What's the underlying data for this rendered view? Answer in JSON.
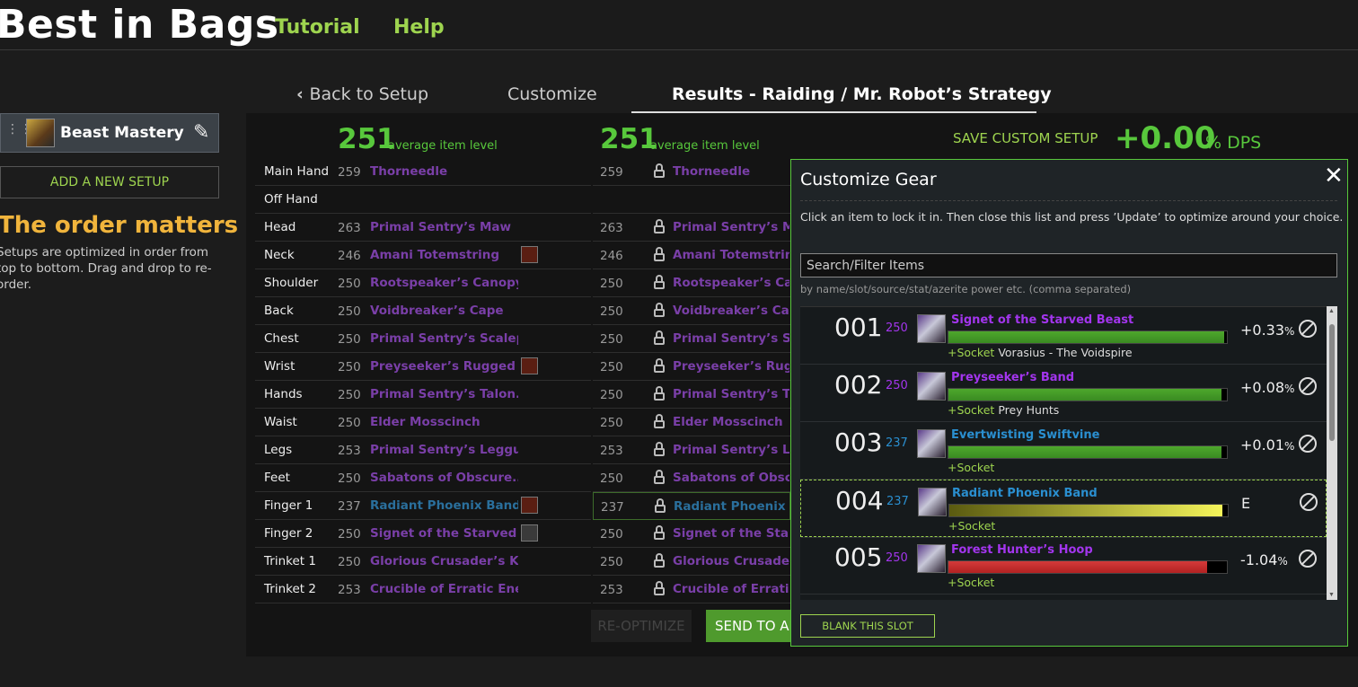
{
  "header": {
    "logo": "Best in Bags",
    "nav": [
      "Tutorial",
      "Help"
    ]
  },
  "sidebar": {
    "setup_name": "Beast Mastery",
    "add_setup": "ADD A NEW SETUP",
    "order_heading": "The order matters",
    "order_text": "Setups are optimized in order from top to bottom. Drag and drop to re-order."
  },
  "tabs": [
    "Back to Setup",
    "Customize",
    "Results - Raiding / Mr. Robot’s Strategy"
  ],
  "summary": {
    "left_ilvl": "251",
    "right_ilvl": "251",
    "ilvl_label": "average item level",
    "save_custom": "SAVE CUSTOM SETUP",
    "dps_value": "+0.00",
    "dps_unit": "% DPS"
  },
  "gear": [
    {
      "slot": "Main Hand",
      "ilvl": "259",
      "item": "Thorneedle",
      "right_item": "Thorneedle",
      "blue": false,
      "gem": ""
    },
    {
      "slot": "Off Hand",
      "ilvl": "",
      "item": "",
      "right_item": "",
      "blue": false,
      "gem": ""
    },
    {
      "slot": "Head",
      "ilvl": "263",
      "item": "Primal Sentry’s Maw",
      "right_item": "Primal Sentry’s Maw",
      "blue": false,
      "gem": ""
    },
    {
      "slot": "Neck",
      "ilvl": "246",
      "item": "Amani Totemstring",
      "right_item": "Amani Totemstring",
      "blue": false,
      "gem": "red"
    },
    {
      "slot": "Shoulder",
      "ilvl": "250",
      "item": "Rootspeaker’s Canopy",
      "right_item": "Rootspeaker’s Canc",
      "blue": false,
      "gem": ""
    },
    {
      "slot": "Back",
      "ilvl": "250",
      "item": "Voidbreaker’s Cape",
      "right_item": "Voidbreaker’s Cape",
      "blue": false,
      "gem": ""
    },
    {
      "slot": "Chest",
      "ilvl": "250",
      "item": "Primal Sentry’s Scalep...",
      "right_item": "Primal Sentry’s Scal",
      "blue": false,
      "gem": ""
    },
    {
      "slot": "Wrist",
      "ilvl": "250",
      "item": "Preyseeker’s Rugged ...",
      "right_item": "Preyseeker’s Rugge",
      "blue": false,
      "gem": "red"
    },
    {
      "slot": "Hands",
      "ilvl": "250",
      "item": "Primal Sentry’s Talon...",
      "right_item": "Primal Sentry’s Talo",
      "blue": false,
      "gem": ""
    },
    {
      "slot": "Waist",
      "ilvl": "250",
      "item": "Elder Mosscinch",
      "right_item": "Elder Mosscinch",
      "blue": false,
      "gem": ""
    },
    {
      "slot": "Legs",
      "ilvl": "253",
      "item": "Primal Sentry’s Leggu...",
      "right_item": "Primal Sentry’s Legg",
      "blue": false,
      "gem": ""
    },
    {
      "slot": "Feet",
      "ilvl": "250",
      "item": "Sabatons of Obscure...",
      "right_item": "Sabatons of Obscur",
      "blue": false,
      "gem": ""
    },
    {
      "slot": "Finger 1",
      "ilvl": "237",
      "item": "Radiant Phoenix Band",
      "right_item": "Radiant Phoenix Ba",
      "blue": true,
      "gem": "red"
    },
    {
      "slot": "Finger 2",
      "ilvl": "250",
      "item": "Signet of the Starved ...",
      "right_item": "Signet of the Starve",
      "blue": false,
      "gem": "grey"
    },
    {
      "slot": "Trinket 1",
      "ilvl": "250",
      "item": "Glorious Crusader’s K...",
      "right_item": "Glorious Crusader’s",
      "blue": false,
      "gem": ""
    },
    {
      "slot": "Trinket 2",
      "ilvl": "253",
      "item": "Crucible of Erratic Ene...",
      "right_item": "Crucible of Erratic E",
      "blue": false,
      "gem": ""
    }
  ],
  "buttons": {
    "reoptimize": "RE-OPTIMIZE",
    "send": "SEND TO ADDON"
  },
  "modal": {
    "title": "Customize Gear",
    "close": "✕",
    "description": "Click an item to lock it in. Then close this list and press ’Update’ to optimize around your choice.",
    "search_placeholder": "Search/Filter Items",
    "hint": "by name/slot/source/stat/azerite power etc. (comma separated)",
    "blank_slot": "BLANK THIS SLOT",
    "items": [
      {
        "num": "001",
        "ilvl": "250",
        "name": "Signet of the Starved Beast",
        "rarity": "epic",
        "bar": 0.99,
        "bar_color": "green",
        "pct": "+0.33",
        "pct_unit": "%",
        "socket": "+Socket",
        "source": "Vorasius - The Voidspire"
      },
      {
        "num": "002",
        "ilvl": "250",
        "name": "Preyseeker’s Band",
        "rarity": "epic",
        "bar": 0.98,
        "bar_color": "green",
        "pct": "+0.08",
        "pct_unit": "%",
        "socket": "+Socket",
        "source": "Prey Hunts"
      },
      {
        "num": "003",
        "ilvl": "237",
        "name": "Evertwisting Swiftvine",
        "rarity": "rare",
        "bar": 0.98,
        "bar_color": "green",
        "pct": "+0.01",
        "pct_unit": "%",
        "socket": "+Socket",
        "source": ""
      },
      {
        "num": "004",
        "ilvl": "237",
        "name": "Radiant Phoenix Band",
        "rarity": "rare",
        "bar": 0.98,
        "bar_color": "yellow",
        "pct": "E",
        "pct_unit": "",
        "socket": "+Socket",
        "source": ""
      },
      {
        "num": "005",
        "ilvl": "250",
        "name": "Forest Hunter’s Hoop",
        "rarity": "epic",
        "bar": 0.93,
        "bar_color": "red",
        "pct": "-1.04",
        "pct_unit": "%",
        "socket": "+Socket",
        "source": ""
      }
    ]
  }
}
